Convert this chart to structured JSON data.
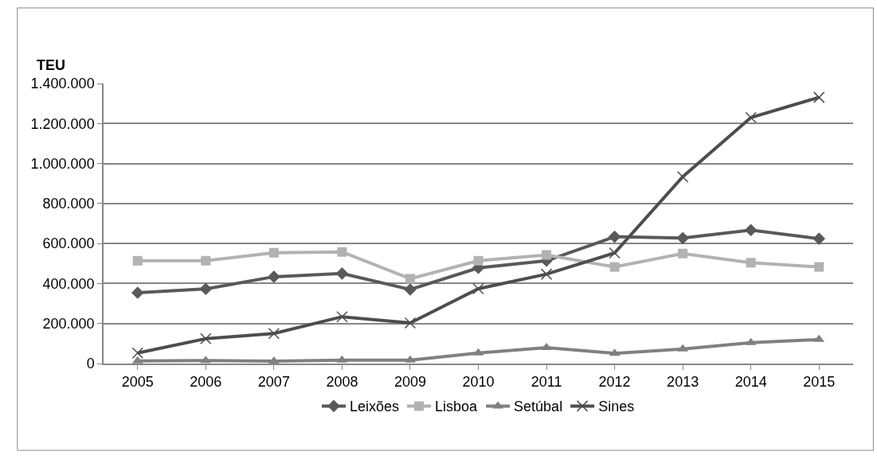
{
  "chart_data": {
    "type": "line",
    "ylabel": "TEU",
    "categories": [
      "2005",
      "2006",
      "2007",
      "2008",
      "2009",
      "2010",
      "2011",
      "2012",
      "2013",
      "2014",
      "2015"
    ],
    "series": [
      {
        "name": "Leixões",
        "color": "#595959",
        "marker": "diamond",
        "values": [
          354000,
          373000,
          434000,
          450000,
          370000,
          478000,
          514000,
          634000,
          627000,
          667000,
          624000
        ]
      },
      {
        "name": "Lisboa",
        "color": "#b2b2b2",
        "marker": "square",
        "values": [
          514000,
          514000,
          554000,
          558000,
          424000,
          514000,
          543000,
          483000,
          550000,
          504000,
          483000
        ]
      },
      {
        "name": "Setúbal",
        "color": "#808080",
        "marker": "triangle",
        "values": [
          13000,
          15000,
          12000,
          17000,
          17000,
          53000,
          80000,
          51000,
          73000,
          104000,
          120000
        ]
      },
      {
        "name": "Sines",
        "color": "#4d4d4d",
        "marker": "cross",
        "values": [
          53000,
          124000,
          150000,
          234000,
          203000,
          374000,
          447000,
          553000,
          934000,
          1230000,
          1331000
        ]
      }
    ],
    "ylim": [
      0,
      1400000
    ],
    "yticks": [
      0,
      {
        "value": 200000,
        "label": "200.000"
      },
      {
        "value": 400000,
        "label": "400.000"
      },
      {
        "value": 600000,
        "label": "600.000"
      },
      {
        "value": 800000,
        "label": "800.000"
      },
      {
        "value": 1000000,
        "label": "1.000.000"
      },
      {
        "value": 1200000,
        "label": "1.200.000"
      },
      {
        "value": 1400000,
        "label": "1.400.000"
      }
    ],
    "grid": "y",
    "legend": "bottom",
    "line_style": "solid"
  }
}
